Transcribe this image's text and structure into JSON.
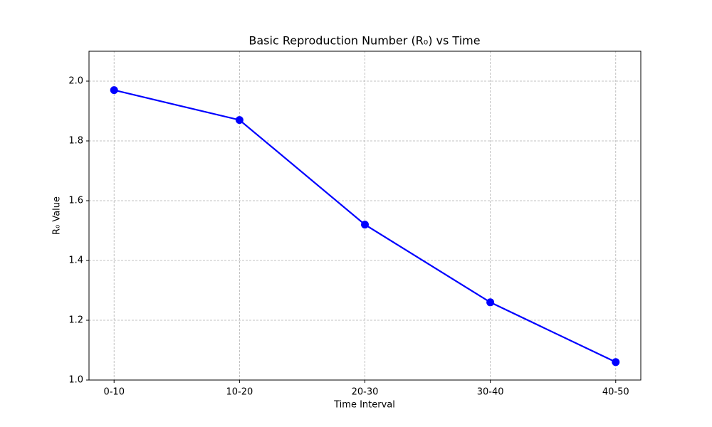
{
  "chart_data": {
    "type": "line",
    "title": "Basic Reproduction Number (R₀) vs Time",
    "x_label": "Time Interval",
    "y_label": "R₀ Value",
    "categories": [
      "0-10",
      "10-20",
      "20-30",
      "30-40",
      "40-50"
    ],
    "values": [
      1.97,
      1.87,
      1.52,
      1.26,
      1.06
    ],
    "color": "#0000ff",
    "ylim": [
      1.0,
      2.1
    ],
    "yticks": [
      {
        "value": 1,
        "label": "1.0"
      },
      1.2,
      1.4,
      1.6,
      1.8,
      {
        "value": 2,
        "label": "2.0"
      }
    ],
    "grid": true
  }
}
